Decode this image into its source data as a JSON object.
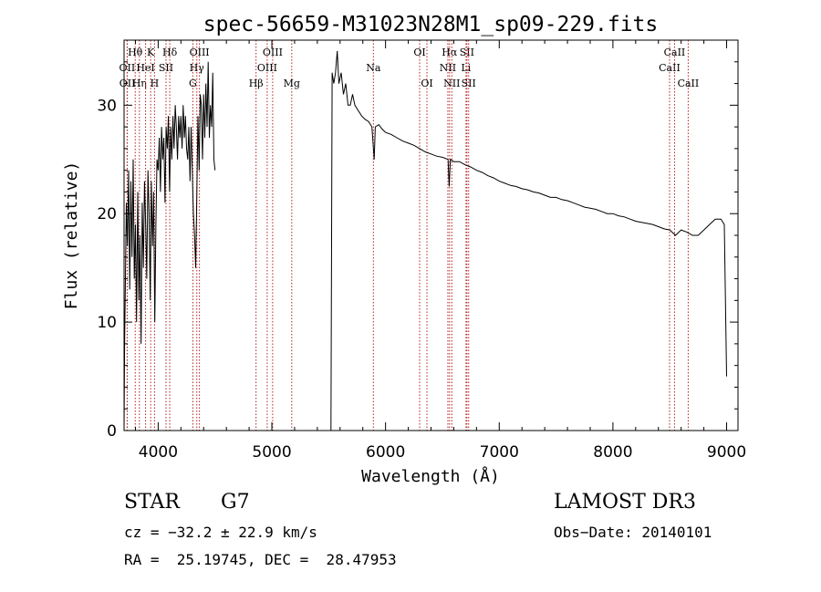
{
  "chart_data": {
    "type": "line",
    "title": "spec-56659-M31023N28M1_sp09-229.fits",
    "xlabel": "Wavelength (Å)",
    "ylabel": "Flux (relative)",
    "xlim": [
      3700,
      9100
    ],
    "ylim": [
      0,
      36
    ],
    "x_ticks": [
      4000,
      5000,
      6000,
      7000,
      8000,
      9000
    ],
    "x_tick_labels": [
      "4000",
      "5000",
      "6000",
      "7000",
      "8000",
      "9000"
    ],
    "y_ticks": [
      0,
      10,
      20,
      30
    ],
    "y_tick_labels": [
      "0",
      "10",
      "20",
      "30"
    ],
    "series": [
      {
        "name": "spectrum",
        "segments": [
          [
            [
              3700,
              0
            ],
            [
              3705,
              8
            ],
            [
              3712,
              14
            ],
            [
              3720,
              21
            ],
            [
              3730,
              17
            ],
            [
              3740,
              24
            ],
            [
              3750,
              13
            ],
            [
              3760,
              23
            ],
            [
              3770,
              16
            ],
            [
              3780,
              25
            ],
            [
              3790,
              14
            ],
            [
              3800,
              19
            ],
            [
              3810,
              10
            ],
            [
              3820,
              22
            ],
            [
              3830,
              12
            ],
            [
              3840,
              18
            ],
            [
              3850,
              8
            ],
            [
              3860,
              21
            ],
            [
              3870,
              15
            ],
            [
              3880,
              23
            ],
            [
              3890,
              19
            ],
            [
              3900,
              14
            ],
            [
              3910,
              24
            ],
            [
              3920,
              20
            ],
            [
              3930,
              12
            ],
            [
              3940,
              23
            ],
            [
              3950,
              17
            ],
            [
              3960,
              22
            ],
            [
              3970,
              10
            ],
            [
              3980,
              19
            ],
            [
              3990,
              25
            ],
            [
              4000,
              24
            ],
            [
              4010,
              27
            ],
            [
              4020,
              22
            ],
            [
              4030,
              28
            ],
            [
              4040,
              25
            ],
            [
              4050,
              27
            ],
            [
              4060,
              21
            ],
            [
              4070,
              28
            ],
            [
              4080,
              26
            ],
            [
              4090,
              29
            ],
            [
              4100,
              22
            ],
            [
              4110,
              28
            ],
            [
              4120,
              25
            ],
            [
              4130,
              29
            ],
            [
              4140,
              26
            ],
            [
              4150,
              30
            ],
            [
              4160,
              28
            ],
            [
              4170,
              25
            ],
            [
              4180,
              29
            ],
            [
              4190,
              27
            ],
            [
              4200,
              29
            ],
            [
              4210,
              26
            ],
            [
              4220,
              30
            ],
            [
              4230,
              27
            ],
            [
              4240,
              29
            ],
            [
              4250,
              26
            ],
            [
              4260,
              25
            ],
            [
              4270,
              28
            ],
            [
              4280,
              23
            ],
            [
              4290,
              28
            ],
            [
              4300,
              24
            ],
            [
              4310,
              20
            ],
            [
              4320,
              18
            ],
            [
              4330,
              15
            ],
            [
              4340,
              22
            ],
            [
              4350,
              29
            ],
            [
              4360,
              24
            ],
            [
              4370,
              31
            ],
            [
              4380,
              30
            ],
            [
              4390,
              25
            ],
            [
              4400,
              31
            ],
            [
              4410,
              27
            ],
            [
              4420,
              32
            ],
            [
              4430,
              28
            ],
            [
              4440,
              34
            ],
            [
              4450,
              27
            ],
            [
              4460,
              30
            ],
            [
              4470,
              28
            ],
            [
              4480,
              33
            ],
            [
              4490,
              25
            ],
            [
              4500,
              24
            ]
          ],
          [
            [
              5520,
              0
            ],
            [
              5530,
              33
            ],
            [
              5545,
              32
            ],
            [
              5560,
              33
            ],
            [
              5575,
              35
            ],
            [
              5590,
              32
            ],
            [
              5610,
              33
            ],
            [
              5630,
              31
            ],
            [
              5650,
              32
            ],
            [
              5670,
              30
            ],
            [
              5690,
              30
            ],
            [
              5710,
              31
            ],
            [
              5730,
              30
            ],
            [
              5760,
              29.5
            ],
            [
              5790,
              29
            ],
            [
              5820,
              28.7
            ],
            [
              5850,
              28.5
            ],
            [
              5880,
              28
            ],
            [
              5900,
              25
            ],
            [
              5910,
              28
            ],
            [
              5940,
              28.2
            ],
            [
              5970,
              27.8
            ],
            [
              6000,
              27.5
            ],
            [
              6050,
              27.3
            ],
            [
              6100,
              27
            ],
            [
              6150,
              26.7
            ],
            [
              6200,
              26.5
            ],
            [
              6250,
              26.3
            ],
            [
              6300,
              26
            ],
            [
              6350,
              25.7
            ],
            [
              6400,
              25.5
            ],
            [
              6450,
              25.3
            ],
            [
              6500,
              25.2
            ],
            [
              6550,
              25
            ],
            [
              6560,
              22.5
            ],
            [
              6570,
              25
            ],
            [
              6600,
              24.8
            ],
            [
              6650,
              24.8
            ],
            [
              6700,
              24.5
            ],
            [
              6750,
              24.3
            ],
            [
              6800,
              24
            ],
            [
              6850,
              23.8
            ],
            [
              6900,
              23.5
            ],
            [
              6950,
              23.3
            ],
            [
              7000,
              23
            ],
            [
              7050,
              22.8
            ],
            [
              7100,
              22.6
            ],
            [
              7150,
              22.5
            ],
            [
              7200,
              22.3
            ],
            [
              7250,
              22.2
            ],
            [
              7300,
              22
            ],
            [
              7350,
              21.9
            ],
            [
              7400,
              21.7
            ],
            [
              7450,
              21.5
            ],
            [
              7500,
              21.5
            ],
            [
              7550,
              21.3
            ],
            [
              7600,
              21.2
            ],
            [
              7650,
              21
            ],
            [
              7700,
              20.8
            ],
            [
              7750,
              20.6
            ],
            [
              7800,
              20.5
            ],
            [
              7850,
              20.4
            ],
            [
              7900,
              20.2
            ],
            [
              7950,
              20
            ],
            [
              8000,
              20
            ],
            [
              8050,
              19.8
            ],
            [
              8100,
              19.7
            ],
            [
              8150,
              19.5
            ],
            [
              8200,
              19.3
            ],
            [
              8250,
              19.2
            ],
            [
              8300,
              19.1
            ],
            [
              8350,
              19
            ],
            [
              8400,
              18.8
            ],
            [
              8450,
              18.6
            ],
            [
              8500,
              18.5
            ],
            [
              8550,
              18
            ],
            [
              8600,
              18.5
            ],
            [
              8650,
              18.3
            ],
            [
              8700,
              18
            ],
            [
              8750,
              18
            ],
            [
              8800,
              18.5
            ],
            [
              8850,
              19
            ],
            [
              8900,
              19.5
            ],
            [
              8950,
              19.5
            ],
            [
              8980,
              19
            ],
            [
              9000,
              5
            ]
          ]
        ]
      }
    ],
    "lines": [
      {
        "label": "OII",
        "x": 3727,
        "row": 2
      },
      {
        "label": "OII",
        "x": 3729,
        "row": 3
      },
      {
        "label": "Hθ",
        "x": 3798,
        "row": 1
      },
      {
        "label": "Hη",
        "x": 3835,
        "row": 3
      },
      {
        "label": "HeI",
        "x": 3889,
        "row": 2
      },
      {
        "label": "K",
        "x": 3934,
        "row": 1
      },
      {
        "label": "H",
        "x": 3968,
        "row": 3
      },
      {
        "label": "SII",
        "x": 4069,
        "row": 2
      },
      {
        "label": "Hδ",
        "x": 4102,
        "row": 1
      },
      {
        "label": "G",
        "x": 4305,
        "row": 3
      },
      {
        "label": "Hγ",
        "x": 4340,
        "row": 2
      },
      {
        "label": "OIII",
        "x": 4363,
        "row": 1
      },
      {
        "label": "Hβ",
        "x": 4861,
        "row": 3
      },
      {
        "label": "OIII",
        "x": 4959,
        "row": 2
      },
      {
        "label": "OIII",
        "x": 5007,
        "row": 1
      },
      {
        "label": "Mg",
        "x": 5175,
        "row": 3
      },
      {
        "label": "Na",
        "x": 5893,
        "row": 2
      },
      {
        "label": "OI",
        "x": 6300,
        "row": 1
      },
      {
        "label": "OI",
        "x": 6364,
        "row": 3
      },
      {
        "label": "NII",
        "x": 6548,
        "row": 2
      },
      {
        "label": "Hα",
        "x": 6563,
        "row": 1
      },
      {
        "label": "NII",
        "x": 6583,
        "row": 3
      },
      {
        "label": "Li",
        "x": 6708,
        "row": 2
      },
      {
        "label": "SII",
        "x": 6716,
        "row": 1
      },
      {
        "label": "SII",
        "x": 6731,
        "row": 3
      },
      {
        "label": "CaII",
        "x": 8498,
        "row": 2
      },
      {
        "label": "CaII",
        "x": 8542,
        "row": 1
      },
      {
        "label": "CaII",
        "x": 8662,
        "row": 3
      }
    ]
  },
  "info": {
    "object_type": "STAR",
    "subclass": "G7",
    "survey": "LAMOST DR3",
    "redshift": "cz = −32.2 ± 22.9 km/s",
    "obs_date": "Obs−Date: 20140101",
    "coords": "RA =  25.19745, DEC =  28.47953"
  }
}
